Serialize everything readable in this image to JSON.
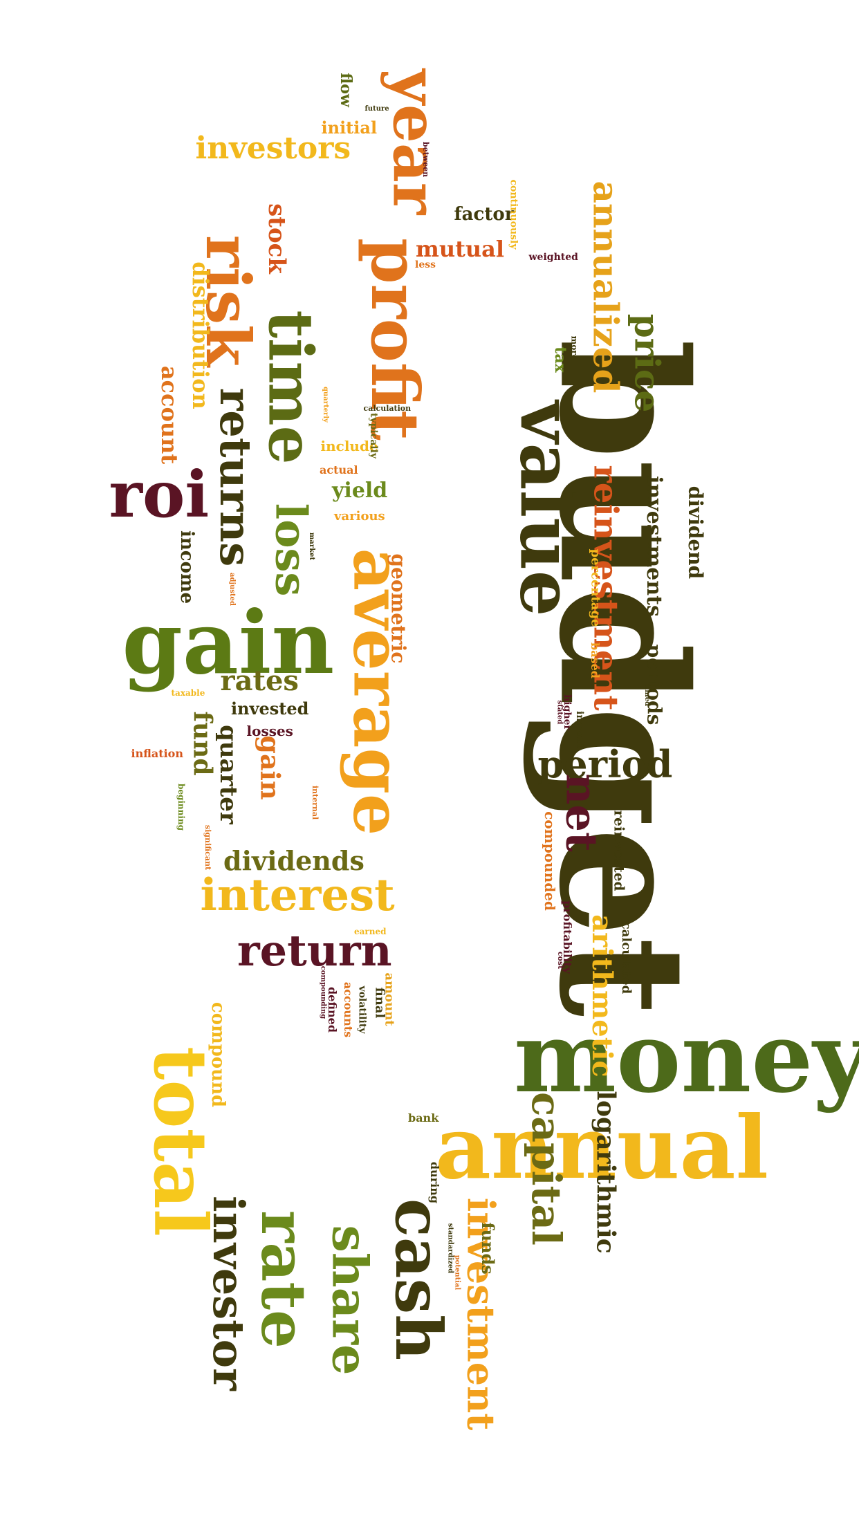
{
  "colors": {
    "dark_olive": "#3f3a0d",
    "olive": "#5c6b14",
    "green": "#4d6a1a",
    "orange": "#e0731c",
    "dark_orange": "#d6541a",
    "yellow": "#f2b81c",
    "gold": "#e6a21a",
    "maroon": "#5a1424"
  },
  "words": [
    {
      "text": "budget",
      "color": "#3f3a0d"
    },
    {
      "text": "money",
      "color": "#4d6a1a"
    },
    {
      "text": "annual",
      "color": "#f2b81c"
    },
    {
      "text": "gain",
      "color": "#5c7a14"
    },
    {
      "text": "average",
      "color": "#f2a01c"
    },
    {
      "text": "value",
      "color": "#3f3a0d"
    },
    {
      "text": "total",
      "color": "#f6c81c"
    },
    {
      "text": "profit",
      "color": "#e0731c"
    },
    {
      "text": "time",
      "color": "#5c6b14"
    },
    {
      "text": "year",
      "color": "#e0731c"
    },
    {
      "text": "risk",
      "color": "#e0731c"
    },
    {
      "text": "roi",
      "color": "#5a1424"
    },
    {
      "text": "cash",
      "color": "#3f3a0d"
    },
    {
      "text": "rate",
      "color": "#6b8a1c"
    },
    {
      "text": "share",
      "color": "#6b8a1c"
    },
    {
      "text": "investor",
      "color": "#3f3a0d"
    },
    {
      "text": "investment",
      "color": "#f2a01c"
    },
    {
      "text": "capital",
      "color": "#6b6a14"
    },
    {
      "text": "return",
      "color": "#5a1424"
    },
    {
      "text": "interest",
      "color": "#f2b81c"
    },
    {
      "text": "net",
      "color": "#5a1424"
    },
    {
      "text": "period",
      "color": "#3f3a0d"
    },
    {
      "text": "returns",
      "color": "#3f3a0d"
    },
    {
      "text": "loss",
      "color": "#6b8a1c"
    },
    {
      "text": "investors",
      "color": "#f2b81c"
    },
    {
      "text": "annualized",
      "color": "#e6a21a"
    },
    {
      "text": "reinvestment",
      "color": "#d6541a"
    },
    {
      "text": "price",
      "color": "#5c6b14"
    },
    {
      "text": "logarithmic",
      "color": "#3f3a0d"
    },
    {
      "text": "arithmetic",
      "color": "#f2b81c"
    },
    {
      "text": "dividends",
      "color": "#6b6a14"
    },
    {
      "text": "fund",
      "color": "#6b6a14"
    },
    {
      "text": "quarter",
      "color": "#3f3a0d"
    },
    {
      "text": "rates",
      "color": "#6b6a14"
    },
    {
      "text": "gain",
      "color": "#e0731c"
    },
    {
      "text": "stock",
      "color": "#d6541a"
    },
    {
      "text": "distribution",
      "color": "#f2b81c"
    },
    {
      "text": "account",
      "color": "#e0731c"
    },
    {
      "text": "income",
      "color": "#3f3a0d"
    },
    {
      "text": "investments",
      "color": "#3f3a0d"
    },
    {
      "text": "dividend",
      "color": "#3f3a0d"
    },
    {
      "text": "periods",
      "color": "#3f3a0d"
    },
    {
      "text": "mutual",
      "color": "#d6541a"
    },
    {
      "text": "factor",
      "color": "#3f3a0d"
    },
    {
      "text": "initial",
      "color": "#f2a01c"
    },
    {
      "text": "flow",
      "color": "#5c6b14"
    },
    {
      "text": "yield",
      "color": "#6b8a1c"
    },
    {
      "text": "geometric",
      "color": "#e0731c"
    },
    {
      "text": "compound",
      "color": "#f2b81c"
    },
    {
      "text": "funds",
      "color": "#6b6a14"
    },
    {
      "text": "reinvested",
      "color": "#3f3a0d"
    },
    {
      "text": "compounded",
      "color": "#e0731c"
    },
    {
      "text": "calculated",
      "color": "#3f3a0d"
    },
    {
      "text": "invested",
      "color": "#3f3a0d"
    },
    {
      "text": "losses",
      "color": "#5a1424"
    },
    {
      "text": "tax",
      "color": "#6b8a1c"
    },
    {
      "text": "include",
      "color": "#f2b81c"
    },
    {
      "text": "various",
      "color": "#f2a01c"
    },
    {
      "text": "actual",
      "color": "#e0731c"
    },
    {
      "text": "amount",
      "color": "#e6a21a"
    },
    {
      "text": "final",
      "color": "#3f3a0d"
    },
    {
      "text": "defined",
      "color": "#5a1424"
    },
    {
      "text": "volatility",
      "color": "#3f3a0d"
    },
    {
      "text": "accounts",
      "color": "#e0731c"
    },
    {
      "text": "during",
      "color": "#3f3a0d"
    },
    {
      "text": "profitability",
      "color": "#5a1424"
    },
    {
      "text": "bank",
      "color": "#6b6a14"
    },
    {
      "text": "inflation",
      "color": "#d6541a"
    },
    {
      "text": "percentage",
      "color": "#f2b81c"
    },
    {
      "text": "based",
      "color": "#f2a01c"
    },
    {
      "text": "weighted",
      "color": "#5a1424"
    },
    {
      "text": "continuously",
      "color": "#f2b81c"
    },
    {
      "text": "more",
      "color": "#3f3a0d"
    },
    {
      "text": "less",
      "color": "#e0731c"
    },
    {
      "text": "higher",
      "color": "#5a1424"
    },
    {
      "text": "impact",
      "color": "#3f3a0d"
    },
    {
      "text": "typically",
      "color": "#6b6a14"
    },
    {
      "text": "calculation",
      "color": "#3f3a0d"
    },
    {
      "text": "beginning",
      "color": "#6b8a1c"
    },
    {
      "text": "taxable",
      "color": "#f2b81c"
    },
    {
      "text": "significant",
      "color": "#e0731c"
    },
    {
      "text": "cost",
      "color": "#5a1424"
    },
    {
      "text": "future",
      "color": "#3f3a0d"
    },
    {
      "text": "between",
      "color": "#5a1424"
    },
    {
      "text": "earned",
      "color": "#f2b81c"
    },
    {
      "text": "market",
      "color": "#3f3a0d"
    },
    {
      "text": "stated",
      "color": "#5a1424"
    },
    {
      "text": "timed",
      "color": "#3f3a0d"
    },
    {
      "text": "internal",
      "color": "#e0731c"
    },
    {
      "text": "compounding",
      "color": "#5a1424"
    },
    {
      "text": "adjusted",
      "color": "#e0731c"
    },
    {
      "text": "quarterly",
      "color": "#f2a01c"
    },
    {
      "text": "standardized",
      "color": "#3f3a0d"
    },
    {
      "text": "potential",
      "color": "#e0731c"
    }
  ]
}
